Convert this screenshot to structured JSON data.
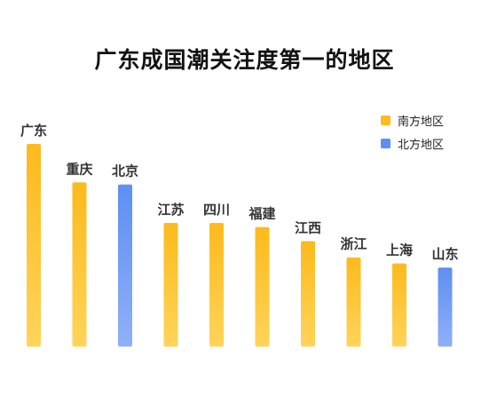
{
  "title": "广东成国潮关注度第一的地区",
  "legend": {
    "south_label": "南方地区",
    "north_label": "北方地区"
  },
  "colors": {
    "south": "#FCBA1C",
    "south_light": "#FFD45A",
    "north": "#5E8FF2",
    "north_light": "#8FB0F7",
    "label": "#333333"
  },
  "chart_data": {
    "type": "bar",
    "title": "广东成国潮关注度第一的地区",
    "categories": [
      "广东",
      "重庆",
      "北京",
      "江苏",
      "四川",
      "福建",
      "江西",
      "浙江",
      "上海",
      "山东"
    ],
    "region": [
      "南方地区",
      "南方地区",
      "北方地区",
      "南方地区",
      "南方地区",
      "南方地区",
      "南方地区",
      "南方地区",
      "南方地区",
      "北方地区"
    ],
    "values": [
      100,
      81,
      80,
      61,
      61,
      59,
      52,
      44,
      41,
      39
    ],
    "xlabel": "",
    "ylabel": "",
    "grid": false,
    "legend_position": "top-right",
    "value_labels_shown": false
  }
}
